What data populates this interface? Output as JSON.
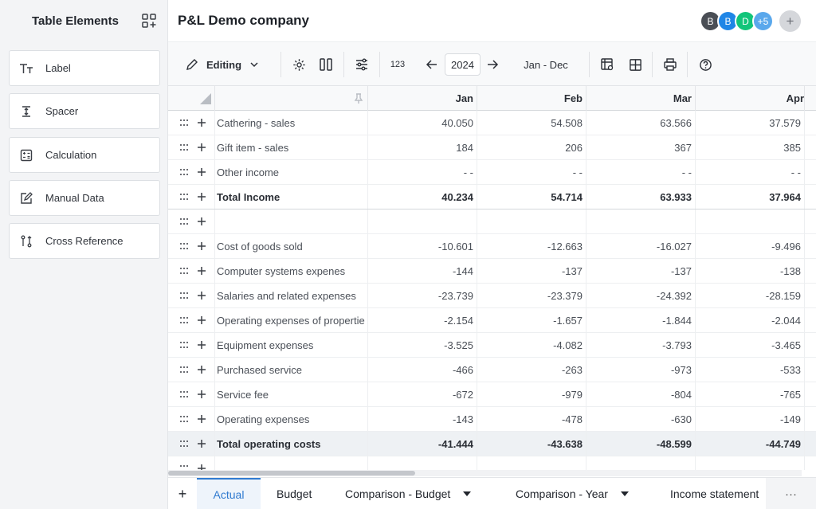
{
  "sidebar": {
    "title": "Table Elements",
    "items": [
      {
        "label": "Label",
        "icon": "text-size-icon"
      },
      {
        "label": "Spacer",
        "icon": "spacer-icon"
      },
      {
        "label": "Calculation",
        "icon": "calculator-icon"
      },
      {
        "label": "Manual Data",
        "icon": "edit-icon"
      },
      {
        "label": "Cross Reference",
        "icon": "cross-reference-icon"
      }
    ]
  },
  "header": {
    "company": "P&L Demo company",
    "avatars": [
      {
        "initial": "B",
        "color": "#4a4e55"
      },
      {
        "initial": "B",
        "color": "#1f86e6"
      },
      {
        "initial": "D",
        "color": "#12c57a"
      },
      {
        "initial": "+5",
        "color": "#5aa8ec"
      }
    ],
    "add_label": "+"
  },
  "toolbar": {
    "mode_label": "Editing",
    "year": "2024",
    "range": "Jan - Dec",
    "number_format": "123"
  },
  "table": {
    "columns": [
      "Jan",
      "Feb",
      "Mar",
      "Apr"
    ],
    "rows": [
      {
        "label": "Cathering - sales",
        "values": [
          "40.050",
          "54.508",
          "63.566",
          "37.579"
        ],
        "kind": "normal"
      },
      {
        "label": "Gift item - sales",
        "values": [
          "184",
          "206",
          "367",
          "385"
        ],
        "kind": "normal"
      },
      {
        "label": "Other income",
        "values": [
          "- -",
          "- -",
          "- -",
          "- -"
        ],
        "kind": "normal"
      },
      {
        "label": "Total Income",
        "values": [
          "40.234",
          "54.714",
          "63.933",
          "37.964"
        ],
        "kind": "total"
      },
      {
        "label": "",
        "values": [
          "",
          "",
          "",
          ""
        ],
        "kind": "spacer"
      },
      {
        "label": "Cost of goods sold",
        "values": [
          "-10.601",
          "-12.663",
          "-16.027",
          "-9.496"
        ],
        "kind": "normal"
      },
      {
        "label": "Computer systems expenes",
        "values": [
          "-144",
          "-137",
          "-137",
          "-138"
        ],
        "kind": "normal"
      },
      {
        "label": "Salaries and related expenses",
        "values": [
          "-23.739",
          "-23.379",
          "-24.392",
          "-28.159"
        ],
        "kind": "normal"
      },
      {
        "label": "Operating expenses of propertie",
        "values": [
          "-2.154",
          "-1.657",
          "-1.844",
          "-2.044"
        ],
        "kind": "normal"
      },
      {
        "label": "Equipment expenses",
        "values": [
          "-3.525",
          "-4.082",
          "-3.793",
          "-3.465"
        ],
        "kind": "normal"
      },
      {
        "label": "Purchased service",
        "values": [
          "-466",
          "-263",
          "-973",
          "-533"
        ],
        "kind": "normal"
      },
      {
        "label": "Service fee",
        "values": [
          "-672",
          "-979",
          "-804",
          "-765"
        ],
        "kind": "normal"
      },
      {
        "label": "Operating expenses",
        "values": [
          "-143",
          "-478",
          "-630",
          "-149"
        ],
        "kind": "normal"
      },
      {
        "label": "Total operating costs",
        "values": [
          "-41.444",
          "-43.638",
          "-48.599",
          "-44.749"
        ],
        "kind": "ops"
      },
      {
        "label": "",
        "values": [
          "",
          "",
          "",
          ""
        ],
        "kind": "spacer"
      }
    ]
  },
  "tabs": {
    "add_label": "+",
    "items": [
      {
        "label": "Actual",
        "active": true,
        "dropdown": false
      },
      {
        "label": "Budget",
        "active": false,
        "dropdown": false
      },
      {
        "label": "Comparison - Budget",
        "active": false,
        "dropdown": true
      },
      {
        "label": "Comparison - Year",
        "active": false,
        "dropdown": true
      },
      {
        "label": "Income statement",
        "active": false,
        "dropdown": false
      }
    ],
    "more_label": "···"
  },
  "colors": {
    "accent": "#2f7ad0"
  }
}
